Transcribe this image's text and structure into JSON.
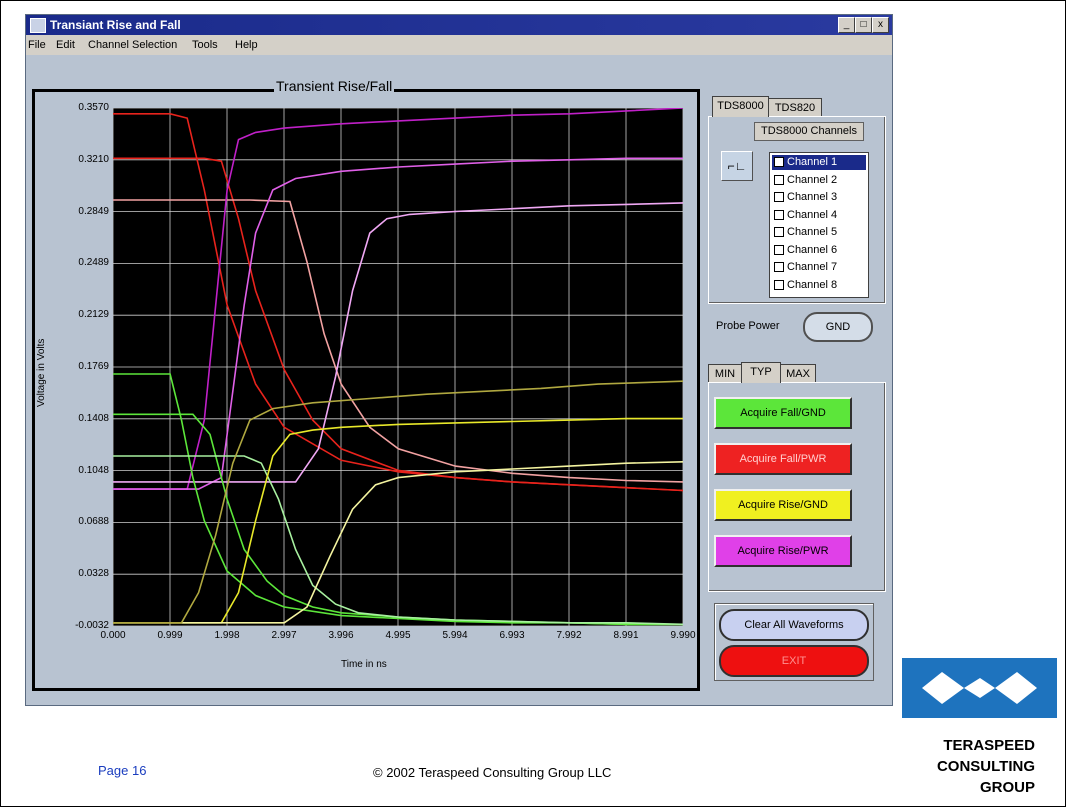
{
  "window": {
    "title": "Transiant Rise and Fall",
    "controls": [
      "_",
      "□",
      "x"
    ]
  },
  "menu": [
    "File",
    "Edit",
    "Channel Selection",
    "Tools",
    "Help"
  ],
  "plot": {
    "title": "Transient Rise/Fall"
  },
  "chart_data": {
    "type": "line",
    "title": "Transient Rise/Fall",
    "xlabel": "Time in ns",
    "ylabel": "Voltage in Volts",
    "xlim": [
      0.0,
      9.99
    ],
    "ylim": [
      -0.0032,
      0.357
    ],
    "x_ticks": [
      "0.000",
      "0.999",
      "1.998",
      "2.997",
      "3.996",
      "4.995",
      "5.994",
      "6.993",
      "7.992",
      "8.991",
      "9.990"
    ],
    "y_ticks": [
      "-0.0032",
      "0.0328",
      "0.0688",
      "0.1048",
      "0.1408",
      "0.1769",
      "0.2129",
      "0.2489",
      "0.2849",
      "0.3210",
      "0.3570"
    ],
    "grid": true,
    "background": "#000000",
    "series": [
      {
        "color": "#e8231c",
        "x": [
          0,
          1.0,
          1.3,
          1.6,
          2.0,
          2.5,
          3.0,
          4.0,
          5.0,
          6.0,
          7.0,
          8.0,
          9.0,
          9.99
        ],
        "values": [
          0.353,
          0.353,
          0.35,
          0.3,
          0.22,
          0.165,
          0.135,
          0.112,
          0.104,
          0.1,
          0.097,
          0.095,
          0.093,
          0.091
        ]
      },
      {
        "color": "#e8231c",
        "x": [
          0,
          1.6,
          1.9,
          2.2,
          2.5,
          3.0,
          3.5,
          4.0,
          5.0,
          6.0,
          7.0,
          8.0,
          9.0,
          9.99
        ],
        "values": [
          0.322,
          0.322,
          0.32,
          0.28,
          0.23,
          0.175,
          0.14,
          0.12,
          0.105,
          0.1,
          0.097,
          0.095,
          0.093,
          0.091
        ]
      },
      {
        "color": "#f2a2a2",
        "x": [
          0,
          2.4,
          3.1,
          3.4,
          3.7,
          4.0,
          4.5,
          5.0,
          6.0,
          7.0,
          8.0,
          9.0,
          9.99
        ],
        "values": [
          0.293,
          0.293,
          0.292,
          0.25,
          0.2,
          0.165,
          0.135,
          0.12,
          0.108,
          0.103,
          0.1,
          0.098,
          0.097
        ]
      },
      {
        "color": "#c020c8",
        "x": [
          0,
          1.3,
          1.6,
          1.8,
          2.0,
          2.2,
          2.5,
          3.0,
          4.0,
          5.0,
          6.0,
          7.0,
          8.0,
          9.0,
          9.99
        ],
        "values": [
          0.092,
          0.092,
          0.14,
          0.22,
          0.3,
          0.335,
          0.34,
          0.343,
          0.346,
          0.348,
          0.35,
          0.352,
          0.353,
          0.355,
          0.357
        ]
      },
      {
        "color": "#e060e8",
        "x": [
          0,
          1.5,
          1.9,
          2.1,
          2.3,
          2.5,
          2.8,
          3.2,
          4.0,
          5.0,
          6.0,
          7.0,
          8.0,
          9.0,
          9.99
        ],
        "values": [
          0.092,
          0.092,
          0.1,
          0.16,
          0.22,
          0.27,
          0.3,
          0.308,
          0.313,
          0.316,
          0.318,
          0.32,
          0.321,
          0.322,
          0.322
        ]
      },
      {
        "color": "#f0a8f4",
        "x": [
          0,
          3.2,
          3.6,
          3.9,
          4.2,
          4.5,
          4.8,
          5.2,
          6.0,
          7.0,
          8.0,
          9.0,
          9.99
        ],
        "values": [
          0.097,
          0.097,
          0.12,
          0.17,
          0.23,
          0.27,
          0.28,
          0.283,
          0.285,
          0.287,
          0.289,
          0.29,
          0.291
        ]
      },
      {
        "color": "#5ce63a",
        "x": [
          0,
          1.0,
          1.2,
          1.4,
          1.6,
          2.0,
          2.5,
          3.0,
          4.0,
          5.0,
          6.0,
          7.0,
          8.0,
          9.0,
          9.99
        ],
        "values": [
          0.172,
          0.172,
          0.14,
          0.1,
          0.07,
          0.035,
          0.018,
          0.01,
          0.004,
          0.002,
          0.0,
          -0.001,
          -0.001,
          -0.002,
          -0.002
        ]
      },
      {
        "color": "#5ce63a",
        "x": [
          0,
          1.4,
          1.7,
          2.0,
          2.3,
          2.7,
          3.0,
          3.5,
          4.0,
          5.0,
          6.0,
          7.0,
          8.0,
          9.0,
          9.99
        ],
        "values": [
          0.144,
          0.144,
          0.13,
          0.085,
          0.05,
          0.028,
          0.018,
          0.01,
          0.006,
          0.003,
          0.001,
          0.0,
          -0.001,
          -0.002,
          -0.002
        ]
      },
      {
        "color": "#a8f0a0",
        "x": [
          0,
          2.3,
          2.6,
          2.9,
          3.2,
          3.5,
          3.9,
          4.3,
          5.0,
          6.0,
          7.0,
          8.0,
          9.0,
          9.99
        ],
        "values": [
          0.115,
          0.115,
          0.11,
          0.085,
          0.05,
          0.025,
          0.012,
          0.006,
          0.003,
          0.001,
          0.0,
          -0.001,
          -0.001,
          -0.002
        ]
      },
      {
        "color": "#e8e82a",
        "x": [
          0,
          1.9,
          2.2,
          2.5,
          2.8,
          3.1,
          3.5,
          4.0,
          5.0,
          6.0,
          7.0,
          8.0,
          9.0,
          9.99
        ],
        "values": [
          -0.001,
          -0.001,
          0.02,
          0.07,
          0.115,
          0.13,
          0.133,
          0.135,
          0.137,
          0.138,
          0.139,
          0.14,
          0.141,
          0.141
        ]
      },
      {
        "color": "#f4f4a0",
        "x": [
          0,
          3.0,
          3.4,
          3.8,
          4.2,
          4.6,
          5.0,
          6.0,
          7.0,
          8.0,
          9.0,
          9.99
        ],
        "values": [
          -0.001,
          -0.001,
          0.01,
          0.045,
          0.078,
          0.095,
          0.1,
          0.104,
          0.106,
          0.108,
          0.11,
          0.111
        ]
      },
      {
        "color": "#b0a840",
        "x": [
          0,
          1.2,
          1.5,
          1.8,
          2.1,
          2.4,
          2.8,
          3.5,
          4.5,
          5.5,
          6.5,
          7.5,
          8.5,
          9.99
        ],
        "values": [
          -0.001,
          -0.001,
          0.02,
          0.06,
          0.11,
          0.14,
          0.148,
          0.152,
          0.155,
          0.158,
          0.16,
          0.162,
          0.165,
          0.167
        ]
      }
    ]
  },
  "tabs_device": [
    "TDS8000",
    "TDS820"
  ],
  "channels": {
    "header": "TDS8000 Channels",
    "probe_button": "⌐∟",
    "items": [
      "Channel 1",
      "Channel 2",
      "Channel 3",
      "Channel 4",
      "Channel 5",
      "Channel 6",
      "Channel 7",
      "Channel 8"
    ],
    "selected": 0
  },
  "probe_power": {
    "label": "Probe Power",
    "value": "GND"
  },
  "tabs_mode": [
    "MIN",
    "TYP",
    "MAX"
  ],
  "acquire_buttons": [
    {
      "label": "Acquire Fall/GND",
      "color": "#5ce63a",
      "text_color": "#000000"
    },
    {
      "label": "Acquire Fall/PWR",
      "color": "#ee2222",
      "text_color": "#ffd0d0"
    },
    {
      "label": "Acquire Rise/GND",
      "color": "#f0f020",
      "text_color": "#000000"
    },
    {
      "label": "Acquire Rise/PWR",
      "color": "#e040e8",
      "text_color": "#000000"
    }
  ],
  "clear_button": {
    "label": "Clear All Waveforms",
    "color": "#c8d0f0"
  },
  "exit_button": {
    "label": "EXIT",
    "color": "#ee1010",
    "text_color": "#ff9090"
  },
  "footer": {
    "page": "Page 16",
    "copyright": "© 2002 Teraspeed Consulting Group LLC"
  },
  "company": {
    "line1": "TERASPEED",
    "line2": "CONSULTING",
    "line3": "GROUP",
    "logo_color": "#1e73be"
  }
}
